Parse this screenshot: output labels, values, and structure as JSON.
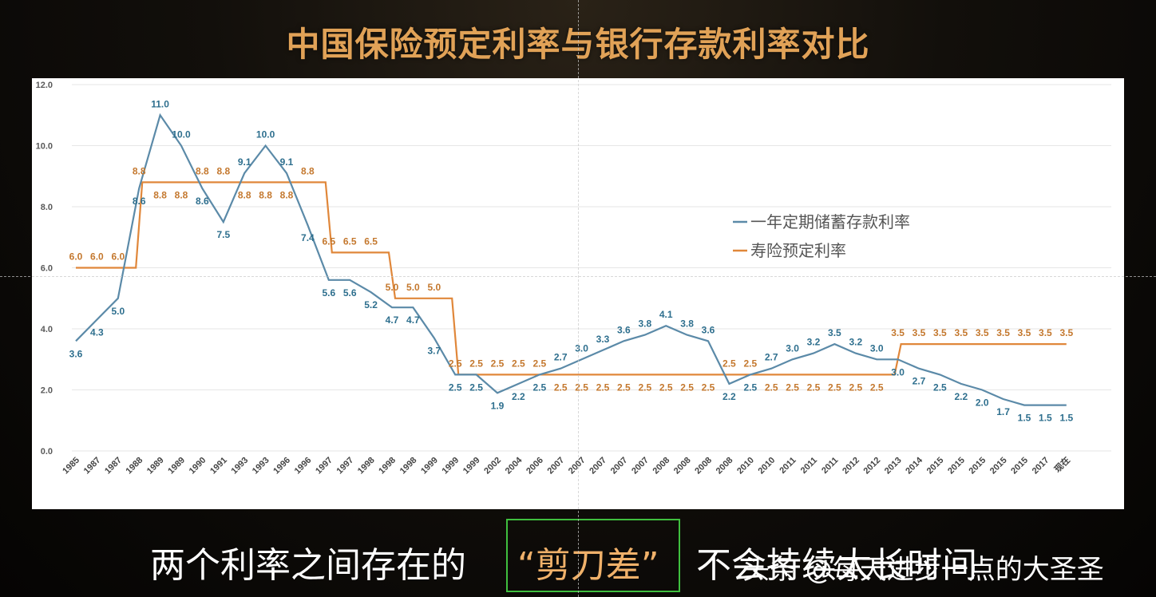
{
  "title": "中国保险预定利率与银行存款利率对比",
  "caption": {
    "left": "两个利率之间存在的",
    "highlight": "“剪刀差”",
    "right": "不会持续太长时间",
    "watermark": "头条 @每天进步一点的大圣圣"
  },
  "chart_data": {
    "type": "line",
    "categories": [
      "1985",
      "1987",
      "1987",
      "1988",
      "1989",
      "1989",
      "1990",
      "1991",
      "1993",
      "1993",
      "1996",
      "1996",
      "1997",
      "1997",
      "1998",
      "1998",
      "1998",
      "1999",
      "1999",
      "1999",
      "2002",
      "2004",
      "2006",
      "2007",
      "2007",
      "2007",
      "2007",
      "2007",
      "2008",
      "2008",
      "2008",
      "2008",
      "2010",
      "2010",
      "2011",
      "2011",
      "2011",
      "2012",
      "2012",
      "2013",
      "2014",
      "2015",
      "2015",
      "2015",
      "2015",
      "2015",
      "2017",
      "现在"
    ],
    "ylim": [
      0,
      12
    ],
    "yticks": [
      "0.0",
      "2.0",
      "4.0",
      "6.0",
      "8.0",
      "10.0",
      "12.0"
    ],
    "series": [
      {
        "name": "一年定期储蓄存款利率",
        "color": "#5b8aa8",
        "label_color": "#2e6f8e",
        "values": [
          3.6,
          4.3,
          5.0,
          8.6,
          11.0,
          10.0,
          8.6,
          7.5,
          9.1,
          10.0,
          9.1,
          7.4,
          5.6,
          5.6,
          5.2,
          4.7,
          4.7,
          3.7,
          2.5,
          2.5,
          1.9,
          2.2,
          2.5,
          2.7,
          3.0,
          3.3,
          3.6,
          3.8,
          4.1,
          3.8,
          3.6,
          2.2,
          2.5,
          2.7,
          3.0,
          3.2,
          3.5,
          3.2,
          3.0,
          3.0,
          2.7,
          2.5,
          2.2,
          2.0,
          1.7,
          1.5,
          1.5,
          1.5
        ]
      },
      {
        "name": "寿险预定利率",
        "color": "#e0873a",
        "label_color": "#c4782e",
        "values": [
          6.0,
          6.0,
          6.0,
          8.8,
          8.8,
          8.8,
          8.8,
          8.8,
          8.8,
          8.8,
          8.8,
          8.8,
          6.5,
          6.5,
          6.5,
          5.0,
          5.0,
          5.0,
          2.5,
          2.5,
          2.5,
          2.5,
          2.5,
          2.5,
          2.5,
          2.5,
          2.5,
          2.5,
          2.5,
          2.5,
          2.5,
          2.5,
          2.5,
          2.5,
          2.5,
          2.5,
          2.5,
          2.5,
          2.5,
          3.5,
          3.5,
          3.5,
          3.5,
          3.5,
          3.5,
          3.5,
          3.5,
          3.5
        ]
      }
    ],
    "legend_position": "right",
    "grid": true
  }
}
